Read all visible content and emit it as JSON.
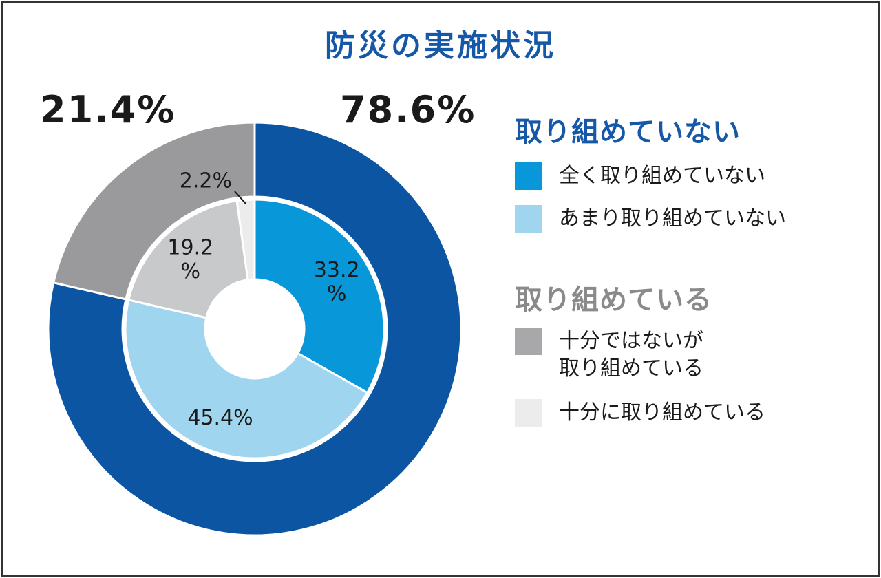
{
  "chart_data": {
    "type": "pie",
    "title": "防災の実施状況",
    "title_color": "#1558a8",
    "outer": {
      "labels": [
        "取り組めていない",
        "取り組めている"
      ],
      "values": [
        78.6,
        21.4
      ],
      "value_labels": [
        "78.6%",
        "21.4%"
      ],
      "colors": [
        "#0b55a3",
        "#9a9a9c"
      ]
    },
    "inner": {
      "labels": [
        "全く取り組めていない",
        "あまり取り組めていない",
        "十分ではないが取り組めている",
        "十分に取り組めている"
      ],
      "values": [
        33.2,
        45.4,
        19.2,
        2.2
      ],
      "value_labels": [
        "33.2\n%",
        "45.4%",
        "19.2\n%",
        "2.2%"
      ],
      "colors": [
        "#0898d9",
        "#9fd5ef",
        "#c8c9cb",
        "#ececec"
      ]
    },
    "legend": [
      {
        "group": "取り組めていない",
        "group_color": "#1558a8",
        "items": [
          {
            "label": "全く取り組めていない",
            "color": "#0898d9"
          },
          {
            "label": "あまり取り組めていない",
            "color": "#9fd5ef"
          }
        ]
      },
      {
        "group": "取り組めている",
        "group_color": "#8a8a8a",
        "items": [
          {
            "label": "十分ではないが\n取り組めている",
            "color": "#a8a8aa"
          },
          {
            "label": "十分に取り組めている",
            "color": "#ececec"
          }
        ]
      }
    ]
  }
}
